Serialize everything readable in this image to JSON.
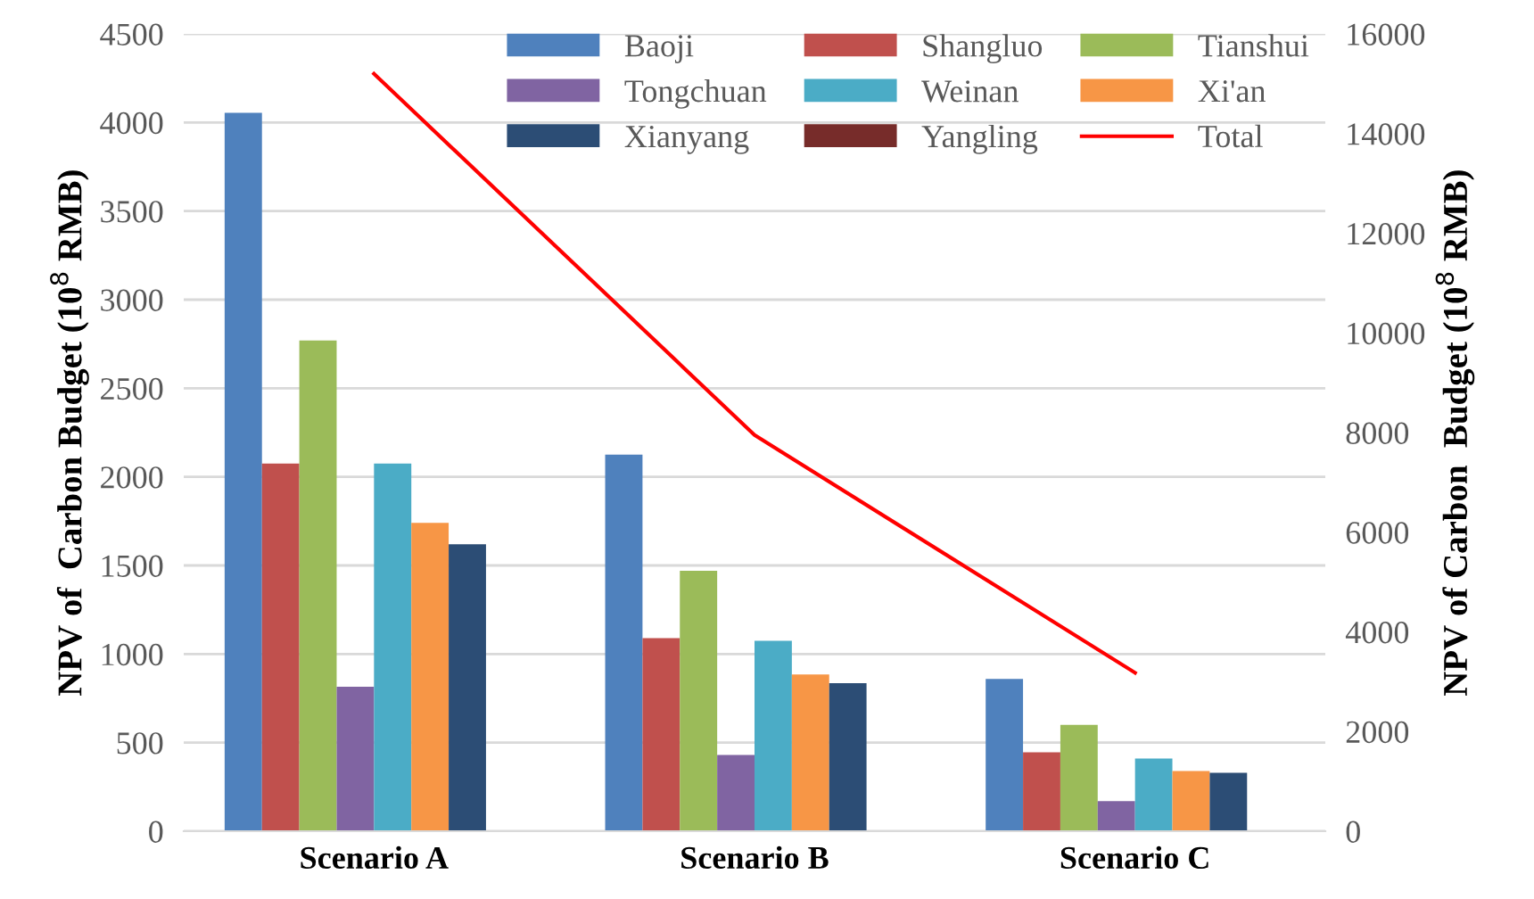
{
  "chart_data": {
    "type": "bar",
    "categories": [
      "Scenario A",
      "Scenario B",
      "Scenario C"
    ],
    "ylabel": "NPV of  Carbon Budget (10$^{8}$ RMB)",
    "y2label": "NPV of Carbon  Budget (10$^{8}$ RMB)",
    "series": [
      {
        "name": "Baoji",
        "color": "#4f81bd",
        "values": [
          4055,
          2125,
          860
        ]
      },
      {
        "name": "Shangluo",
        "color": "#c0504d",
        "values": [
          2075,
          1090,
          445
        ]
      },
      {
        "name": "Tianshui",
        "color": "#9bbb59",
        "values": [
          2770,
          1470,
          600
        ]
      },
      {
        "name": "Tongchuan",
        "color": "#8064a2",
        "values": [
          815,
          430,
          170
        ]
      },
      {
        "name": "Weinan",
        "color": "#4bacc6",
        "values": [
          2075,
          1075,
          410
        ]
      },
      {
        "name": "Xi'an",
        "color": "#f79646",
        "values": [
          1740,
          885,
          340
        ]
      },
      {
        "name": "Xianyang",
        "color": "#2c4d75",
        "values": [
          1620,
          835,
          330
        ]
      },
      {
        "name": "Yangling",
        "color": "#772c2a",
        "values": [
          0,
          0,
          0
        ]
      },
      {
        "name": "Total",
        "color": "#ff0000",
        "type": "line",
        "axis": "y2",
        "values": [
          15200,
          7950,
          3180
        ]
      }
    ],
    "ylim": [
      0,
      4500
    ],
    "yticks": [
      0,
      500,
      1000,
      1500,
      2000,
      2500,
      3000,
      3500,
      4000,
      4500
    ],
    "y2lim": [
      0,
      16000
    ],
    "y2ticks": [
      0,
      2000,
      4000,
      6000,
      8000,
      10000,
      12000,
      14000,
      16000
    ],
    "grid": "y",
    "legend": "top right",
    "marker": "none",
    "line_style": "solid"
  }
}
